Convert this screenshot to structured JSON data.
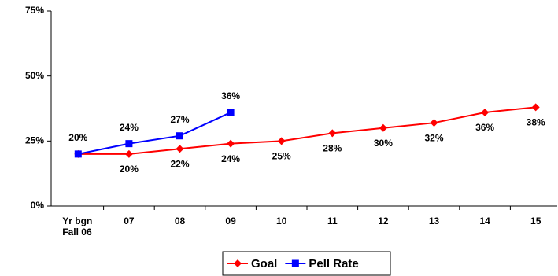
{
  "chart_data": {
    "type": "line",
    "categories": [
      "Yr bgn Fall 06",
      "07",
      "08",
      "09",
      "10",
      "11",
      "12",
      "13",
      "14",
      "15"
    ],
    "series": [
      {
        "name": "Goal",
        "color": "#ff0000",
        "marker": "diamond",
        "values": [
          20,
          20,
          22,
          24,
          25,
          28,
          30,
          32,
          36,
          38
        ],
        "value_labels": [
          null,
          "20%",
          "22%",
          "24%",
          "25%",
          "28%",
          "30%",
          "32%",
          "36%",
          "38%"
        ]
      },
      {
        "name": "Pell Rate",
        "color": "#0000ff",
        "marker": "square",
        "values": [
          20,
          24,
          27,
          36,
          null,
          null,
          null,
          null,
          null,
          null
        ],
        "value_labels": [
          "20%",
          "24%",
          "27%",
          "36%",
          null,
          null,
          null,
          null,
          null,
          null
        ]
      }
    ],
    "ylim": [
      0,
      75
    ],
    "yticks": [
      {
        "value": 0,
        "label": "0%"
      },
      {
        "value": 25,
        "label": "25%"
      },
      {
        "value": 50,
        "label": "50%"
      },
      {
        "value": 75,
        "label": "75%"
      }
    ],
    "grid": false,
    "legend": "bottom"
  }
}
